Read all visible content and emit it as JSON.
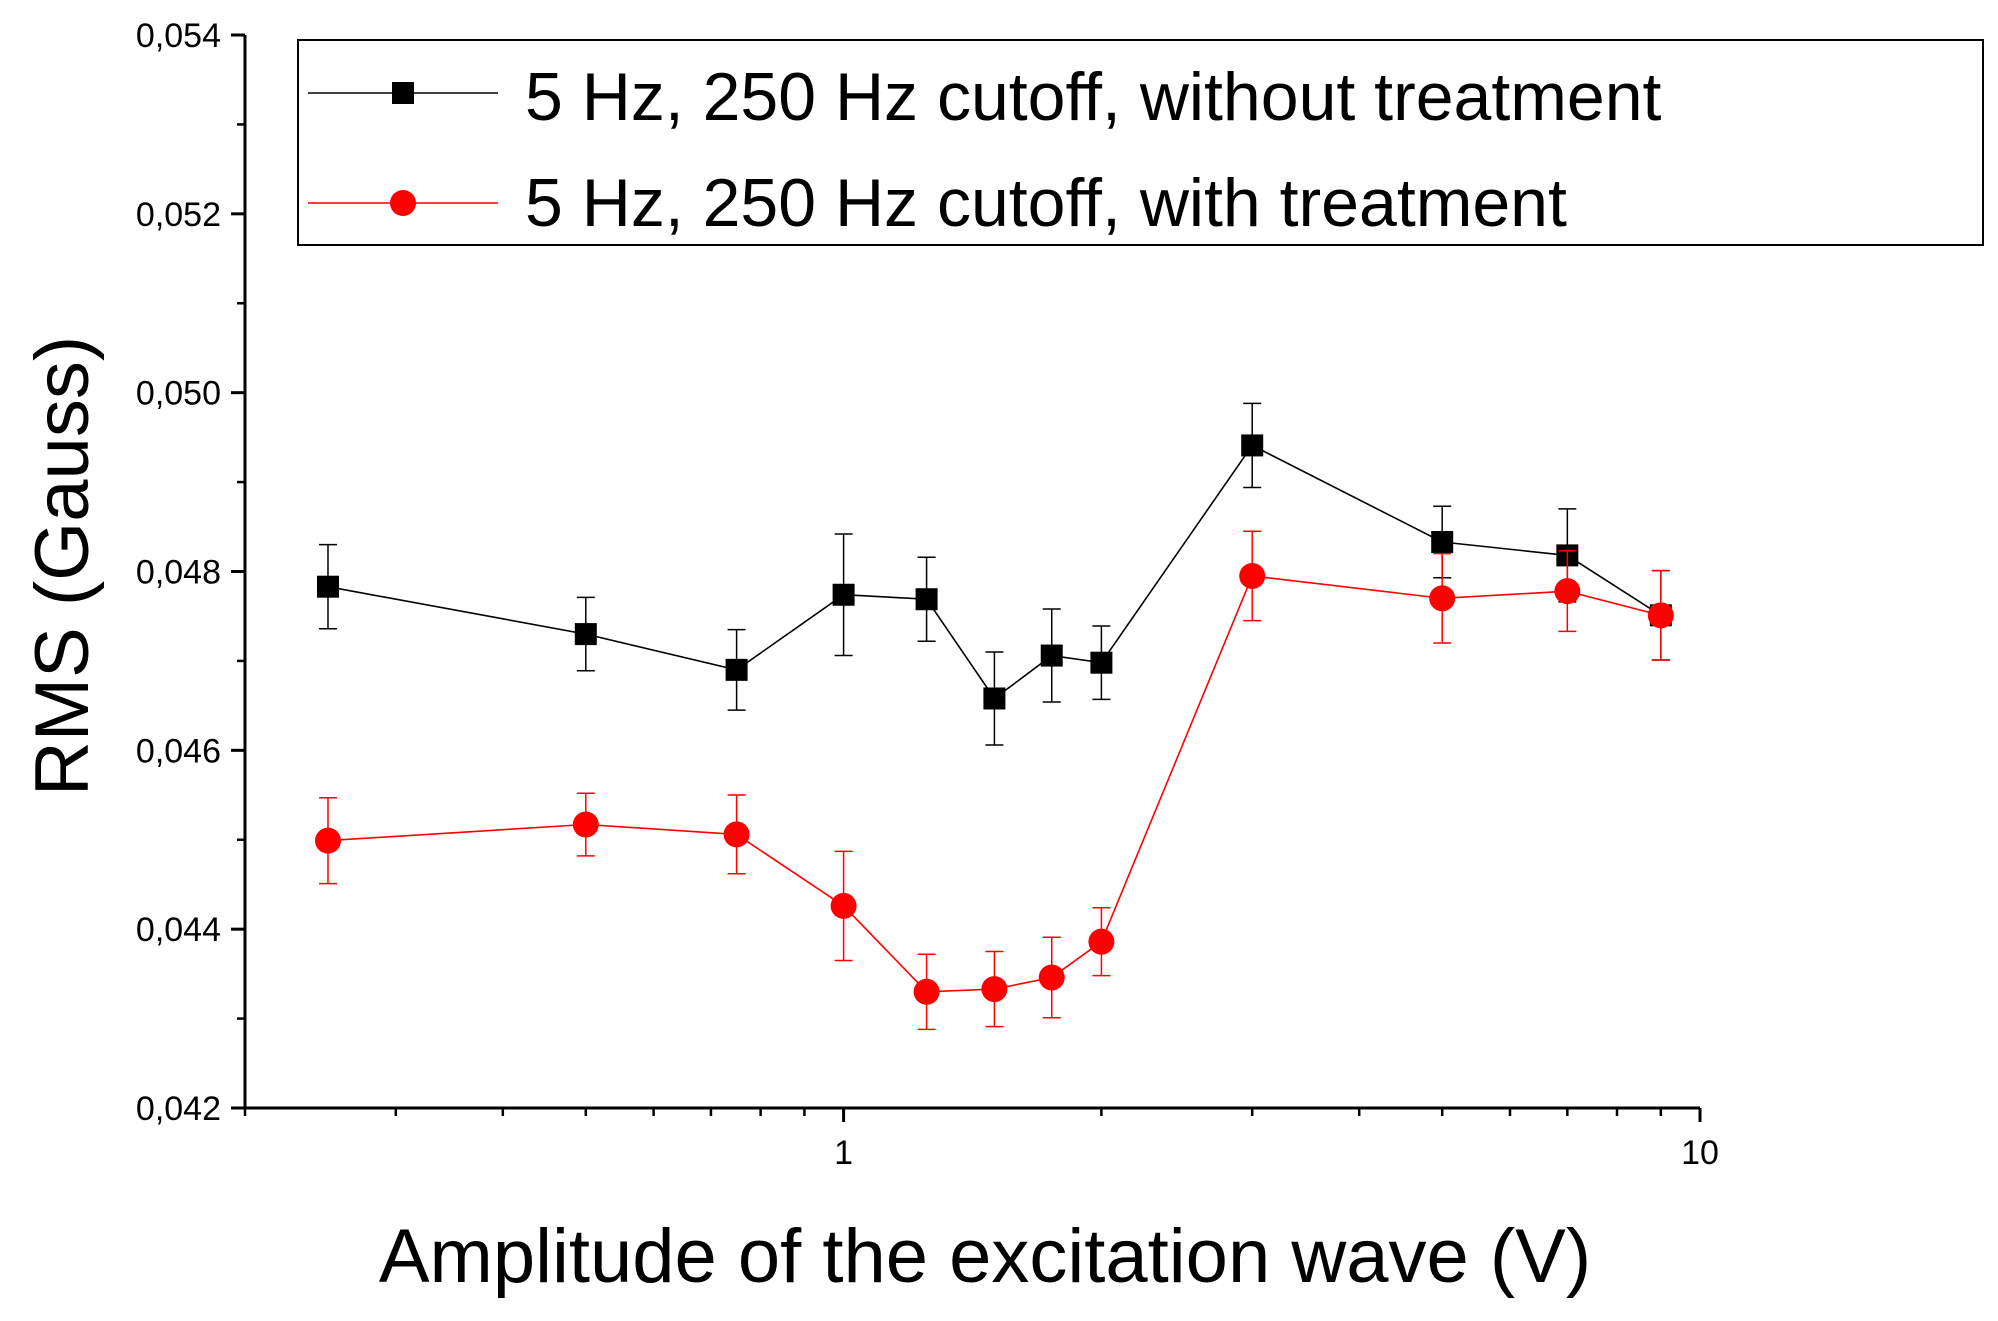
{
  "chart_data": {
    "type": "line",
    "xlabel": "Amplitude of the excitation wave (V)",
    "ylabel": "RMS (Gauss)",
    "xscale": "log",
    "xlim": [
      0.2,
      10
    ],
    "ylim": [
      0.042,
      0.054
    ],
    "x_tick_labels": [
      {
        "value": 1,
        "label": "1"
      },
      {
        "value": 10,
        "label": "10"
      }
    ],
    "y_tick_labels": [
      {
        "value": 0.042,
        "label": "0,042"
      },
      {
        "value": 0.044,
        "label": "0,044"
      },
      {
        "value": 0.046,
        "label": "0,046"
      },
      {
        "value": 0.048,
        "label": "0,048"
      },
      {
        "value": 0.05,
        "label": "0,050"
      },
      {
        "value": 0.052,
        "label": "0,052"
      },
      {
        "value": 0.054,
        "label": "0,054"
      }
    ],
    "grid": false,
    "legend_position": "top-right",
    "series": [
      {
        "name": "5 Hz, 250 Hz cutoff, without treatment",
        "color": "#000000",
        "marker": "square",
        "x": [
          0.25,
          0.5,
          0.75,
          1.0,
          1.25,
          1.5,
          1.75,
          2.0,
          3.0,
          5.0,
          7.0,
          9.0
        ],
        "y": [
          0.04783,
          0.0473,
          0.0469,
          0.04774,
          0.04769,
          0.04658,
          0.04706,
          0.04698,
          0.04941,
          0.04833,
          0.04818,
          0.04751
        ],
        "err": [
          0.00047,
          0.00041,
          0.00045,
          0.00068,
          0.00047,
          0.00052,
          0.00052,
          0.00041,
          0.00047,
          0.0004,
          0.00052,
          0.0005
        ]
      },
      {
        "name": "5 Hz, 250 Hz cutoff, with treatment",
        "color": "#ff0000",
        "marker": "circle",
        "x": [
          0.25,
          0.5,
          0.75,
          1.0,
          1.25,
          1.5,
          1.75,
          2.0,
          3.0,
          5.0,
          7.0,
          9.0
        ],
        "y": [
          0.04499,
          0.04517,
          0.04506,
          0.04426,
          0.0433,
          0.04333,
          0.04346,
          0.04386,
          0.04795,
          0.0477,
          0.04778,
          0.04751
        ],
        "err": [
          0.00048,
          0.00035,
          0.00044,
          0.00061,
          0.00042,
          0.00042,
          0.00045,
          0.00038,
          0.0005,
          0.0005,
          0.00045,
          0.0005
        ]
      }
    ]
  }
}
